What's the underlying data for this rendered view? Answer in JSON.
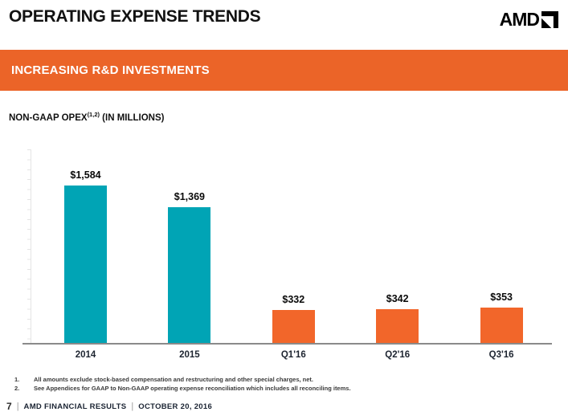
{
  "header": {
    "title": "OPERATING EXPENSE TRENDS",
    "logo_text": "AMD"
  },
  "banner": {
    "label": "INCREASING R&D INVESTMENTS",
    "bg_color": "#EB6428"
  },
  "chart_heading": {
    "prefix": "NON-GAAP OPEX",
    "superscript": "(1,2)",
    "suffix": " (IN MILLIONS)"
  },
  "chart_data": {
    "type": "bar",
    "title": "NON-GAAP OPEX (IN MILLIONS)",
    "categories": [
      "2014",
      "2015",
      "Q1'16",
      "Q2'16",
      "Q3'16"
    ],
    "values": [
      1584,
      1369,
      332,
      342,
      353
    ],
    "value_labels": [
      "$1,584",
      "$1,369",
      "$332",
      "$342",
      "$353"
    ],
    "bar_colors": [
      "#00A4B5",
      "#00A4B5",
      "#F2662A",
      "#F2662A",
      "#F2662A"
    ],
    "xlabel": "",
    "ylabel": "",
    "ylim": [
      0,
      2000
    ],
    "y_tick_step": 100,
    "grid": false,
    "legend": false,
    "axis_color": "#8A8A8A",
    "teal_hex": "#00A4B5",
    "orange_hex": "#F2662A"
  },
  "footnotes": [
    {
      "num": "1.",
      "text": "All amounts exclude stock-based compensation and restructuring and other special charges, net."
    },
    {
      "num": "2.",
      "text": "See Appendices for GAAP to Non-GAAP operating expense reconciliation which includes all reconciling items."
    }
  ],
  "footer": {
    "page_number": "7",
    "separator": "|",
    "label": "AMD FINANCIAL RESULTS",
    "date": "OCTOBER 20, 2016"
  }
}
